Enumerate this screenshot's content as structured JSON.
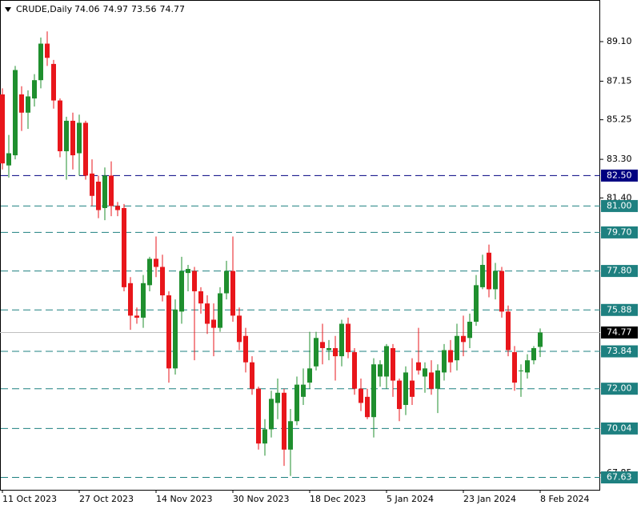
{
  "chart_data": {
    "type": "candlestick",
    "title": "CRUDE,Daily",
    "categories": [
      "11 Oct 2023",
      null,
      null,
      null,
      null,
      null,
      null,
      null,
      null,
      null,
      null,
      null,
      "27 Oct 2023",
      null,
      null,
      null,
      null,
      null,
      null,
      null,
      null,
      null,
      null,
      null,
      "14 Nov 2023",
      null,
      null,
      null,
      null,
      null,
      null,
      null,
      null,
      null,
      null,
      null,
      "30 Nov 2023",
      null,
      null,
      null,
      null,
      null,
      null,
      null,
      null,
      null,
      null,
      null,
      "18 Dec 2023",
      null,
      null,
      null,
      null,
      null,
      null,
      null,
      null,
      null,
      null,
      null,
      "5 Jan 2024",
      null,
      null,
      null,
      null,
      null,
      null,
      null,
      null,
      null,
      null,
      null,
      "23 Jan 2024",
      null,
      null,
      null,
      null,
      null,
      null,
      null,
      null,
      null,
      null,
      null,
      "8 Feb 2024"
    ],
    "open": [
      86.5,
      83.0,
      83.5,
      86.5,
      85.6,
      86.3,
      87.2,
      89.0,
      88.0,
      86.2,
      83.7,
      85.2,
      83.6,
      85.1,
      82.6,
      82.2,
      80.9,
      82.5,
      81.0,
      80.9,
      77.2,
      75.6,
      75.5,
      77.1,
      78.4,
      78.0,
      76.6,
      73.0,
      75.8,
      77.7,
      77.8,
      76.8,
      76.2,
      75.4,
      75.0,
      76.7,
      77.8,
      75.6,
      74.6,
      73.3,
      72.0,
      69.3,
      70.0,
      71.3,
      71.8,
      69.0,
      70.4,
      71.6,
      72.3,
      73.1,
      74.3,
      73.9,
      74.0,
      73.6,
      75.2,
      73.8,
      72.0,
      71.6,
      70.6,
      72.6,
      72.6,
      74.0,
      72.4,
      71.2,
      72.4,
      73.3,
      72.6,
      72.8,
      72.0,
      72.8,
      73.9,
      73.4,
      74.6,
      74.5,
      75.3,
      77.0,
      78.7,
      76.9,
      77.8,
      75.8,
      73.8,
      72.9,
      72.8,
      73.4,
      74.06
    ],
    "high": [
      86.8,
      84.5,
      87.9,
      86.9,
      86.7,
      87.5,
      89.3,
      89.6,
      88.2,
      86.3,
      85.4,
      85.6,
      85.5,
      85.2,
      83.3,
      82.5,
      82.9,
      83.2,
      81.2,
      81.1,
      77.5,
      76.0,
      77.6,
      78.5,
      79.5,
      78.6,
      76.8,
      76.4,
      78.5,
      78.1,
      78.0,
      77.0,
      76.6,
      76.2,
      77.0,
      78.3,
      79.5,
      76.0,
      75.0,
      73.6,
      72.1,
      70.5,
      71.9,
      72.5,
      72.0,
      71.0,
      72.6,
      73.0,
      74.8,
      74.8,
      75.2,
      74.4,
      74.6,
      75.4,
      75.5,
      74.0,
      72.5,
      72.0,
      73.5,
      73.4,
      74.2,
      74.2,
      72.5,
      73.1,
      73.5,
      75.0,
      73.3,
      73.4,
      73.2,
      74.2,
      74.4,
      75.2,
      75.6,
      75.7,
      77.6,
      78.6,
      79.1,
      78.2,
      78.0,
      76.1,
      74.1,
      73.2,
      73.7,
      74.1,
      74.97
    ],
    "low": [
      82.8,
      82.4,
      83.3,
      84.7,
      84.8,
      85.9,
      86.8,
      87.9,
      85.8,
      83.4,
      82.3,
      82.8,
      82.5,
      82.3,
      81.0,
      80.4,
      80.3,
      80.5,
      80.5,
      76.8,
      74.9,
      75.2,
      75.0,
      76.8,
      77.5,
      76.3,
      72.3,
      72.7,
      75.2,
      76.8,
      73.4,
      75.7,
      74.7,
      73.6,
      74.8,
      76.4,
      75.3,
      73.9,
      72.8,
      71.7,
      69.0,
      68.7,
      69.6,
      70.5,
      68.2,
      67.7,
      70.2,
      71.2,
      72.0,
      72.9,
      73.2,
      73.4,
      72.4,
      73.1,
      73.5,
      71.7,
      70.9,
      70.5,
      69.6,
      72.1,
      72.0,
      71.6,
      70.4,
      70.7,
      71.2,
      72.7,
      71.8,
      71.7,
      70.8,
      72.4,
      72.8,
      72.9,
      73.6,
      74.0,
      75.1,
      76.9,
      76.5,
      76.4,
      75.5,
      73.6,
      71.9,
      71.6,
      72.5,
      73.2,
      73.56
    ],
    "close": [
      83.1,
      83.6,
      87.7,
      85.6,
      86.4,
      87.2,
      89.0,
      88.3,
      86.2,
      83.7,
      85.2,
      83.5,
      85.1,
      82.5,
      81.5,
      80.8,
      82.5,
      81.0,
      80.8,
      77.0,
      75.6,
      75.5,
      77.2,
      78.4,
      78.0,
      76.6,
      73.0,
      75.9,
      77.8,
      77.9,
      76.8,
      76.2,
      75.2,
      75.0,
      76.7,
      77.8,
      75.6,
      74.3,
      73.3,
      72.0,
      69.3,
      70.0,
      71.5,
      71.8,
      69.0,
      70.4,
      72.2,
      72.2,
      73.0,
      74.5,
      74.0,
      74.0,
      73.6,
      75.2,
      73.8,
      72.0,
      71.3,
      70.6,
      73.2,
      73.2,
      74.1,
      72.4,
      71.0,
      72.8,
      71.6,
      72.9,
      73.0,
      72.0,
      72.9,
      73.9,
      73.3,
      74.6,
      74.3,
      75.3,
      77.1,
      78.1,
      76.9,
      77.8,
      75.8,
      73.9,
      72.3,
      72.9,
      73.4,
      74.0,
      74.77
    ],
    "up_color": "#1f8f2e",
    "down_color": "#e8161b",
    "ylim": [
      67.02,
      91.15
    ],
    "yticks": [
      {
        "value": 89.1,
        "label": "89.10"
      },
      87.15,
      85.25,
      {
        "value": 83.3,
        "label": "83.30"
      },
      {
        "value": 81.4,
        "label": "81.40"
      },
      67.85
    ],
    "levels": [
      {
        "value": 82.5,
        "label": "82.50",
        "color": "#000080"
      },
      {
        "value": 81.0,
        "label": "81.00",
        "color": "#1e8080"
      },
      {
        "value": 79.7,
        "label": "79.70",
        "color": "#1e8080"
      },
      {
        "value": 77.8,
        "label": "77.80",
        "color": "#1e8080"
      },
      {
        "value": 75.88,
        "label": "75.88",
        "color": "#1e8080"
      },
      {
        "value": 73.84,
        "label": "73.84",
        "color": "#1e8080"
      },
      {
        "value": 72.0,
        "label": "72.00",
        "color": "#1e8080"
      },
      {
        "value": 70.04,
        "label": "70.04",
        "color": "#1e8080"
      },
      {
        "value": 67.63,
        "label": "67.63",
        "color": "#1e8080"
      }
    ]
  }
}
